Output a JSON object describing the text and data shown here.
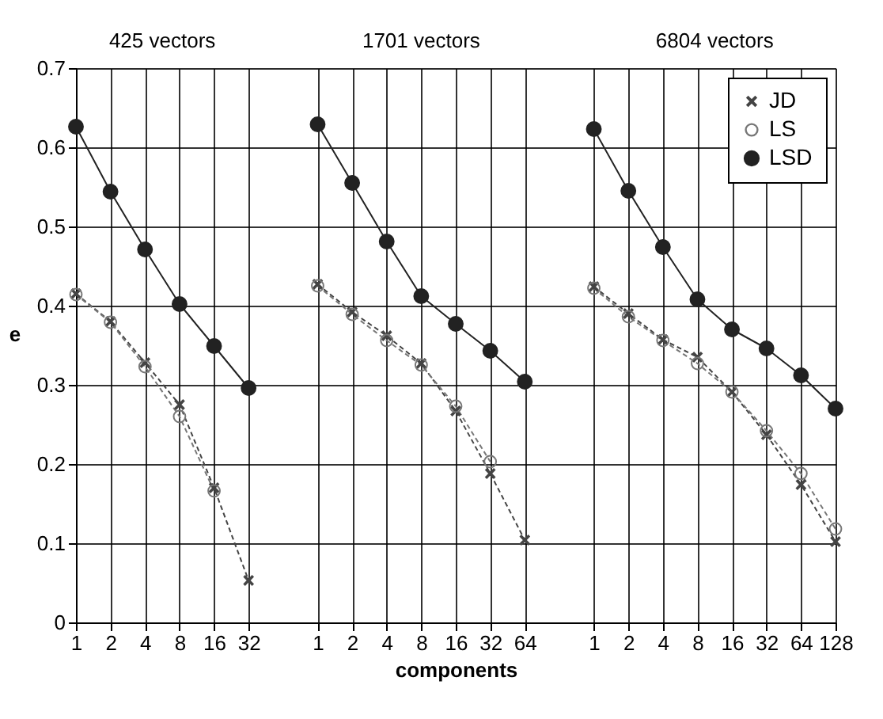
{
  "chart_data": {
    "type": "line",
    "xlabel": "components",
    "ylabel": "e",
    "annotations": [
      "425 vectors",
      "1701 vectors",
      "6804 vectors"
    ],
    "categories": [
      "1",
      "2",
      "4",
      "8",
      "16",
      "32",
      null,
      "1",
      "2",
      "4",
      "8",
      "16",
      "32",
      "64",
      null,
      "1",
      "2",
      "4",
      "8",
      "16",
      "32",
      "64",
      "128"
    ],
    "series": [
      {
        "name": "JD",
        "color": "#444444",
        "marker": "cross",
        "line_style": "dashed",
        "values": [
          0.415,
          0.38,
          0.328,
          0.275,
          0.17,
          0.053,
          null,
          0.427,
          0.392,
          0.362,
          0.327,
          0.267,
          0.188,
          0.104,
          null,
          0.424,
          0.39,
          0.357,
          0.335,
          0.291,
          0.237,
          0.174,
          0.102
        ]
      },
      {
        "name": "LS",
        "color": "#777777",
        "marker": "circle",
        "line_style": "dashed",
        "values": [
          0.414,
          0.379,
          0.323,
          0.26,
          0.166,
          null,
          null,
          0.425,
          0.389,
          0.356,
          0.325,
          0.273,
          0.203,
          null,
          null,
          0.422,
          0.386,
          0.356,
          0.327,
          0.291,
          0.242,
          0.188,
          0.118
        ]
      },
      {
        "name": "LSD",
        "color": "#222222",
        "marker": "dot",
        "line_style": "solid",
        "values": [
          0.626,
          0.544,
          0.471,
          0.402,
          0.349,
          0.296,
          null,
          0.629,
          0.555,
          0.481,
          0.412,
          0.377,
          0.343,
          0.304,
          null,
          0.623,
          0.545,
          0.474,
          0.408,
          0.37,
          0.346,
          0.312,
          0.27
        ]
      }
    ],
    "ylim": [
      0,
      0.7
    ],
    "yticks": [
      0,
      0.1,
      0.2,
      0.3,
      0.4,
      0.5,
      0.6,
      0.7
    ],
    "grid": true,
    "legend": "top right"
  }
}
